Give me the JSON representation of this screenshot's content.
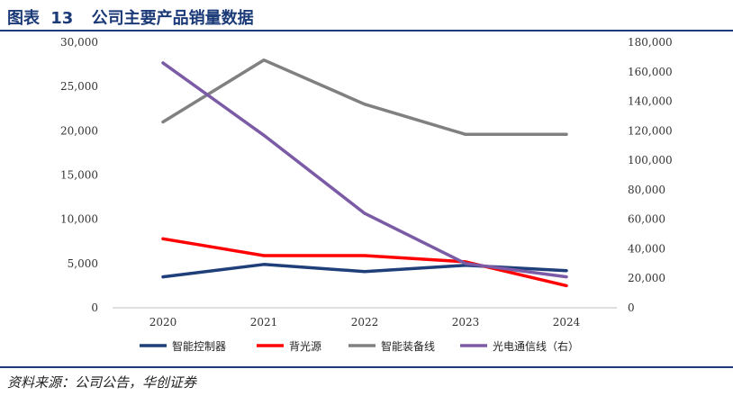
{
  "figure": {
    "label": "图表",
    "number": "13",
    "title": "公司主要产品销量数据"
  },
  "source": "资料来源：公司公告，华创证券",
  "chart_data": {
    "type": "line",
    "categories": [
      "2020",
      "2021",
      "2022",
      "2023",
      "2024"
    ],
    "y_left": {
      "ylim": [
        0,
        30000
      ],
      "ticks": [
        0,
        5000,
        10000,
        15000,
        20000,
        25000,
        30000
      ],
      "tick_labels": [
        "0",
        "5,000",
        "10,000",
        "15,000",
        "20,000",
        "25,000",
        "30,000"
      ]
    },
    "y_right": {
      "ylim": [
        0,
        180000
      ],
      "ticks": [
        0,
        20000,
        40000,
        60000,
        80000,
        100000,
        120000,
        140000,
        160000,
        180000
      ],
      "tick_labels": [
        "0",
        "20,000",
        "40,000",
        "60,000",
        "80,000",
        "100,000",
        "120,000",
        "140,000",
        "160,000",
        "180,000"
      ]
    },
    "grid": false,
    "legend_position": "bottom",
    "series": [
      {
        "name": "智能控制器",
        "axis": "left",
        "color": "#1f3f7a",
        "values": [
          3500,
          4900,
          4100,
          4800,
          4200
        ]
      },
      {
        "name": "背光源",
        "axis": "left",
        "color": "#ff0000",
        "values": [
          7800,
          5900,
          5900,
          5200,
          2500
        ]
      },
      {
        "name": "智能装备线",
        "axis": "left",
        "color": "#808080",
        "values": [
          21000,
          28000,
          23000,
          19600,
          19600
        ]
      },
      {
        "name": "光电通信线（右）",
        "axis": "right",
        "color": "#7b5ba6",
        "values": [
          166000,
          117000,
          64000,
          30000,
          21000
        ]
      }
    ]
  }
}
